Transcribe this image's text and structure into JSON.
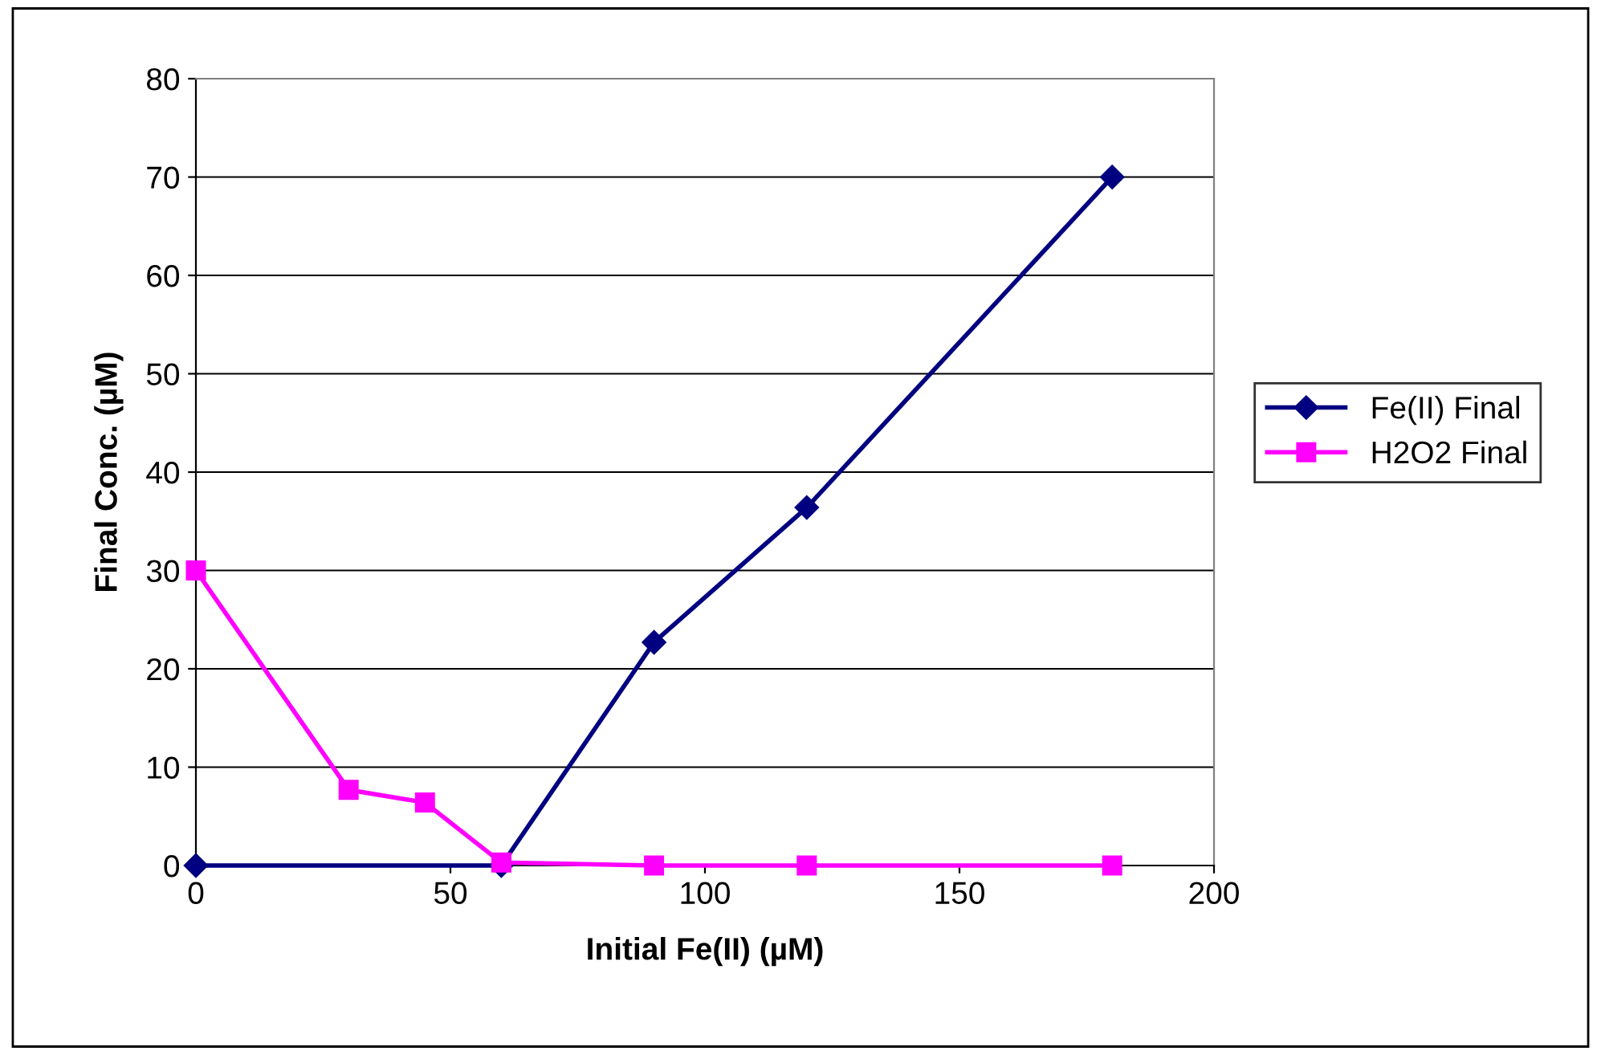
{
  "chart_data": {
    "type": "line",
    "xlabel": "Initial Fe(II) (µM)",
    "ylabel": "Final Conc. (µM)",
    "xlim": [
      0,
      200
    ],
    "xticks": [
      0,
      50,
      100,
      150,
      200
    ],
    "ylim": [
      0,
      80
    ],
    "yticks": [
      0,
      10,
      20,
      30,
      40,
      50,
      60,
      70,
      80
    ],
    "grid": "y",
    "legend": "right",
    "series": [
      {
        "name": "Fe(II) Final",
        "color": "#000080",
        "marker": "diamond",
        "x": [
          0,
          60,
          90,
          120,
          180
        ],
        "values": [
          0,
          0,
          22.7,
          36.4,
          70
        ]
      },
      {
        "name": "H2O2 Final",
        "color": "#ff00ff",
        "marker": "square",
        "x": [
          0,
          30,
          45,
          60,
          90,
          120,
          180
        ],
        "values": [
          30,
          7.7,
          6.4,
          0.3,
          0,
          0,
          0
        ]
      }
    ]
  }
}
